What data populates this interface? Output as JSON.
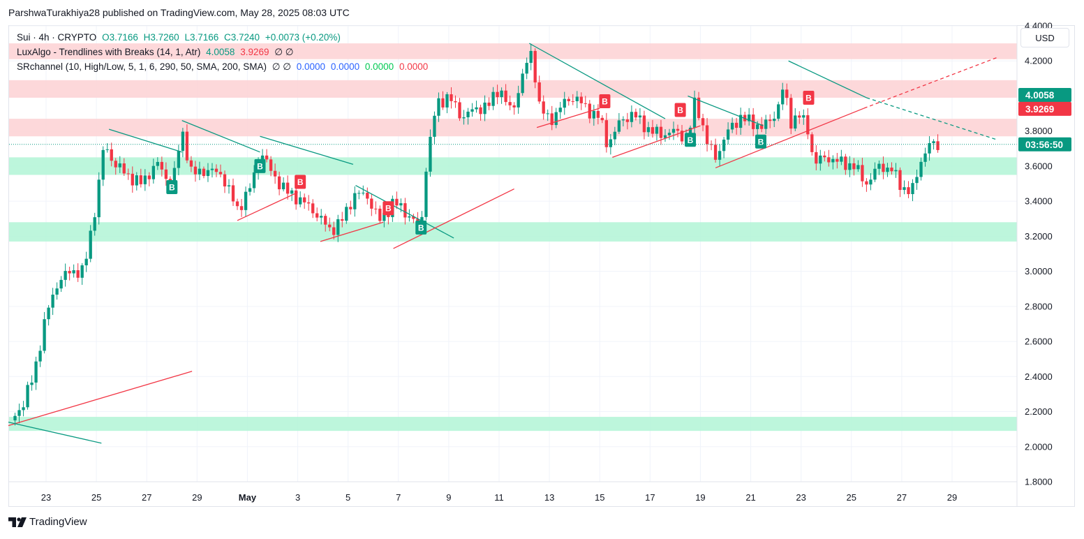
{
  "header": {
    "publish_text": "ParshwaTurakhiya28 published on TradingView.com, May 28, 2025 08:03 UTC"
  },
  "legend": {
    "symbol": "Sui · 4h · CRYPTO",
    "o": "O3.7166",
    "h": "H3.7260",
    "l": "L3.7166",
    "c": "C3.7240",
    "change": "+0.0073 (+0.20%)",
    "ind1_name": "LuxAlgo - Trendlines with Breaks (14, 1, Atr)",
    "ind1_v1": "4.0058",
    "ind1_v2": "3.9269",
    "ind1_v3": "∅ ∅",
    "ind2_name": "SRchannel (10, High/Low, 5, 1, 6, 290, 50, SMA, 200, SMA)",
    "ind2_v0": "∅ ∅",
    "ind2_v1": "0.0000",
    "ind2_v2": "0.0000",
    "ind2_v3": "0.0000",
    "ind2_v4": "0.0000"
  },
  "currency_button": "USD",
  "footer": {
    "brand": "TradingView"
  },
  "colors": {
    "up": "#089981",
    "down": "#f23645",
    "support": "#b2f5d6",
    "resistance": "#fdd1d3"
  },
  "chart_data": {
    "type": "candlestick",
    "y_axis_side": "right",
    "ylim": [
      1.8,
      4.4
    ],
    "yticks": [
      "1.8000",
      "2.0000",
      "2.2000",
      "2.4000",
      "2.6000",
      "2.8000",
      "3.0000",
      "3.2000",
      "3.4000",
      "3.6000",
      "3.8000",
      "4.0000",
      "4.2000",
      "4.4000"
    ],
    "x_ticks": [
      {
        "label": "23",
        "day": 23
      },
      {
        "label": "25",
        "day": 25
      },
      {
        "label": "27",
        "day": 27
      },
      {
        "label": "29",
        "day": 29
      },
      {
        "label": "May",
        "day": 31
      },
      {
        "label": "3",
        "day": 33
      },
      {
        "label": "5",
        "day": 35
      },
      {
        "label": "7",
        "day": 37
      },
      {
        "label": "9",
        "day": 39
      },
      {
        "label": "11",
        "day": 41
      },
      {
        "label": "13",
        "day": 43
      },
      {
        "label": "15",
        "day": 45
      },
      {
        "label": "17",
        "day": 47
      },
      {
        "label": "19",
        "day": 49
      },
      {
        "label": "21",
        "day": 51
      },
      {
        "label": "23",
        "day": 53
      },
      {
        "label": "25",
        "day": 55
      },
      {
        "label": "27",
        "day": 57
      },
      {
        "label": "29",
        "day": 59
      }
    ],
    "price_path": [
      [
        21.6,
        2.15
      ],
      [
        22.0,
        2.22
      ],
      [
        22.5,
        2.4
      ],
      [
        23.0,
        2.75
      ],
      [
        23.5,
        2.95
      ],
      [
        24.0,
        3.0
      ],
      [
        24.5,
        3.0
      ],
      [
        25.0,
        3.4
      ],
      [
        25.3,
        3.72
      ],
      [
        25.7,
        3.62
      ],
      [
        26.2,
        3.55
      ],
      [
        26.8,
        3.5
      ],
      [
        27.4,
        3.62
      ],
      [
        28.0,
        3.48
      ],
      [
        28.4,
        3.8
      ],
      [
        28.8,
        3.55
      ],
      [
        29.4,
        3.58
      ],
      [
        30.0,
        3.55
      ],
      [
        30.6,
        3.35
      ],
      [
        31.2,
        3.5
      ],
      [
        31.5,
        3.7
      ],
      [
        32.0,
        3.55
      ],
      [
        32.6,
        3.45
      ],
      [
        33.2,
        3.4
      ],
      [
        33.8,
        3.32
      ],
      [
        34.3,
        3.23
      ],
      [
        34.8,
        3.3
      ],
      [
        35.3,
        3.45
      ],
      [
        35.8,
        3.42
      ],
      [
        36.3,
        3.28
      ],
      [
        36.8,
        3.4
      ],
      [
        37.4,
        3.32
      ],
      [
        37.9,
        3.25
      ],
      [
        38.1,
        3.6
      ],
      [
        38.5,
        3.95
      ],
      [
        39.0,
        4.0
      ],
      [
        39.5,
        3.88
      ],
      [
        40.0,
        3.92
      ],
      [
        40.6,
        3.95
      ],
      [
        41.0,
        4.05
      ],
      [
        41.5,
        3.9
      ],
      [
        42.0,
        4.15
      ],
      [
        42.3,
        4.25
      ],
      [
        42.6,
        3.95
      ],
      [
        43.0,
        3.85
      ],
      [
        43.5,
        3.95
      ],
      [
        44.0,
        4.0
      ],
      [
        44.5,
        3.92
      ],
      [
        45.0,
        3.88
      ],
      [
        45.3,
        3.72
      ],
      [
        45.8,
        3.85
      ],
      [
        46.3,
        3.9
      ],
      [
        47.0,
        3.8
      ],
      [
        47.5,
        3.78
      ],
      [
        48.0,
        3.8
      ],
      [
        48.5,
        3.75
      ],
      [
        48.8,
        3.98
      ],
      [
        49.3,
        3.72
      ],
      [
        49.6,
        3.65
      ],
      [
        50.1,
        3.8
      ],
      [
        50.6,
        3.88
      ],
      [
        51.0,
        3.85
      ],
      [
        51.5,
        3.82
      ],
      [
        52.0,
        3.9
      ],
      [
        52.3,
        4.05
      ],
      [
        52.6,
        3.85
      ],
      [
        52.9,
        3.9
      ],
      [
        53.3,
        3.8
      ],
      [
        53.5,
        3.62
      ],
      [
        54.0,
        3.65
      ],
      [
        54.6,
        3.62
      ],
      [
        55.1,
        3.6
      ],
      [
        55.6,
        3.5
      ],
      [
        56.1,
        3.6
      ],
      [
        56.6,
        3.58
      ],
      [
        57.0,
        3.48
      ],
      [
        57.4,
        3.45
      ],
      [
        57.8,
        3.65
      ],
      [
        58.1,
        3.72
      ],
      [
        58.5,
        3.72
      ]
    ],
    "zones": [
      {
        "kind": "resistance",
        "low": 4.21,
        "high": 4.3
      },
      {
        "kind": "resistance",
        "low": 3.99,
        "high": 4.09
      },
      {
        "kind": "resistance",
        "low": 3.77,
        "high": 3.87
      },
      {
        "kind": "support",
        "low": 3.55,
        "high": 3.65
      },
      {
        "kind": "support",
        "low": 3.17,
        "high": 3.28
      },
      {
        "kind": "support",
        "low": 2.09,
        "high": 2.17
      }
    ],
    "trendlines": [
      {
        "color": "down",
        "x1": 21.5,
        "y1": 2.12,
        "x2": 28.8,
        "y2": 2.43
      },
      {
        "color": "up",
        "x1": 21.5,
        "y1": 2.14,
        "x2": 25.2,
        "y2": 2.02
      },
      {
        "color": "up",
        "x1": 25.5,
        "y1": 3.81,
        "x2": 28.4,
        "y2": 3.68
      },
      {
        "color": "up",
        "x1": 28.4,
        "y1": 3.86,
        "x2": 31.5,
        "y2": 3.68
      },
      {
        "color": "up",
        "x1": 31.5,
        "y1": 3.77,
        "x2": 35.2,
        "y2": 3.61
      },
      {
        "color": "down",
        "x1": 30.6,
        "y1": 3.29,
        "x2": 33.0,
        "y2": 3.45
      },
      {
        "color": "down",
        "x1": 33.9,
        "y1": 3.17,
        "x2": 36.4,
        "y2": 3.28
      },
      {
        "color": "up",
        "x1": 35.3,
        "y1": 3.49,
        "x2": 39.2,
        "y2": 3.19
      },
      {
        "color": "down",
        "x1": 36.8,
        "y1": 3.13,
        "x2": 41.6,
        "y2": 3.47
      },
      {
        "color": "up",
        "x1": 42.2,
        "y1": 4.3,
        "x2": 47.6,
        "y2": 3.87
      },
      {
        "color": "down",
        "x1": 42.5,
        "y1": 3.82,
        "x2": 45.0,
        "y2": 3.93
      },
      {
        "color": "down",
        "x1": 45.5,
        "y1": 3.65,
        "x2": 49.0,
        "y2": 3.83
      },
      {
        "color": "up",
        "x1": 48.5,
        "y1": 4.0,
        "x2": 51.5,
        "y2": 3.83
      },
      {
        "color": "down",
        "x1": 49.6,
        "y1": 3.59,
        "x2": 55.5,
        "y2": 3.93
      },
      {
        "color": "up",
        "x1": 52.5,
        "y1": 4.2,
        "x2": 55.6,
        "y2": 3.99
      },
      {
        "color": "up",
        "x1": 55.6,
        "y1": 3.99,
        "x2": 60.8,
        "y2": 3.75,
        "dashed": true
      },
      {
        "color": "down",
        "x1": 55.5,
        "y1": 3.93,
        "x2": 60.8,
        "y2": 4.22,
        "dashed": true
      }
    ],
    "markers": [
      {
        "type": "B",
        "color": "up",
        "x": 28.0,
        "y": 3.48
      },
      {
        "type": "B",
        "color": "up",
        "x": 31.5,
        "y": 3.6
      },
      {
        "type": "B",
        "color": "down",
        "x": 33.1,
        "y": 3.51
      },
      {
        "type": "B",
        "color": "down",
        "x": 36.6,
        "y": 3.36
      },
      {
        "type": "B",
        "color": "up",
        "x": 37.9,
        "y": 3.25
      },
      {
        "type": "B",
        "color": "down",
        "x": 45.2,
        "y": 3.97
      },
      {
        "type": "B",
        "color": "down",
        "x": 48.2,
        "y": 3.92
      },
      {
        "type": "B",
        "color": "up",
        "x": 48.6,
        "y": 3.75
      },
      {
        "type": "B",
        "color": "up",
        "x": 51.4,
        "y": 3.74
      },
      {
        "type": "B",
        "color": "down",
        "x": 53.3,
        "y": 3.99
      }
    ],
    "price_line": 3.724,
    "axis_labels": [
      {
        "text": "4.0058",
        "value": 4.0058,
        "color": "up"
      },
      {
        "text": "3.9269",
        "value": 3.9269,
        "color": "down"
      },
      {
        "text": "03:56:50",
        "value": 3.724,
        "color": "up"
      }
    ]
  }
}
